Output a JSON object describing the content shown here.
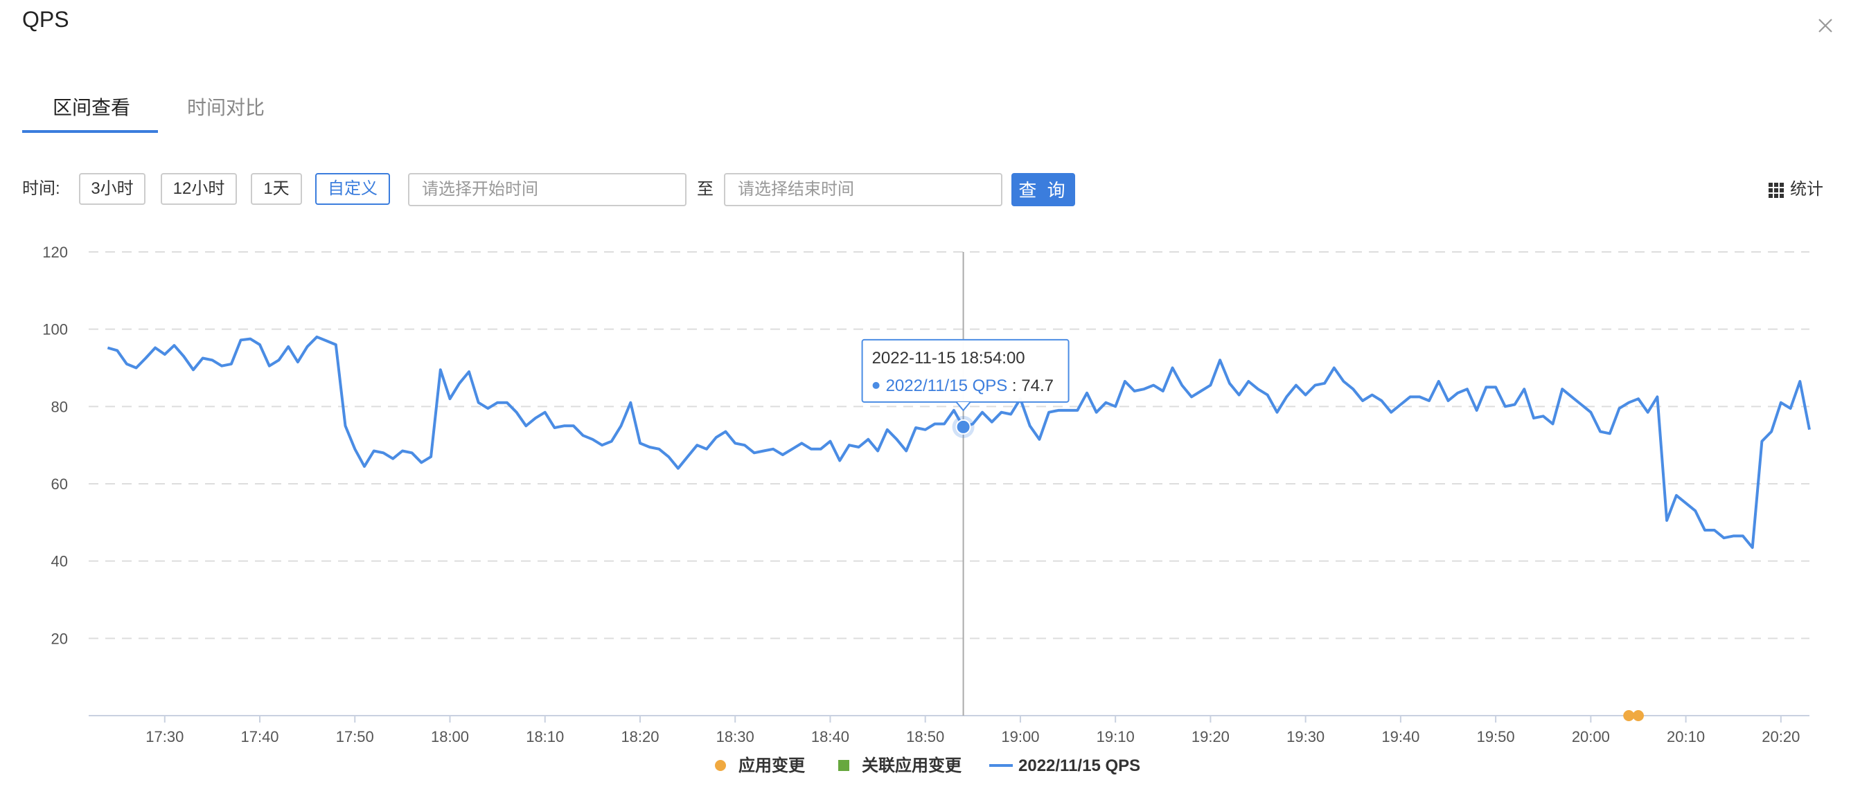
{
  "dialog": {
    "title": "QPS"
  },
  "tabs": [
    {
      "label": "区间查看",
      "active": true
    },
    {
      "label": "时间对比",
      "active": false
    }
  ],
  "toolbar": {
    "time_label": "时间:",
    "range_buttons": [
      "3小时",
      "12小时",
      "1天",
      "自定义"
    ],
    "selected_range": "自定义",
    "start_placeholder": "请选择开始时间",
    "to_label": "至",
    "end_placeholder": "请选择结束时间",
    "query_label": "查 询",
    "stats_label": "统计",
    "stats_icon": "grid-icon"
  },
  "colors": {
    "accent": "#3b7ddd",
    "line": "#4a8ce4",
    "app_change": "#f0a940",
    "related_change": "#67a83e"
  },
  "chart_data": {
    "type": "line",
    "title": "",
    "xlabel": "",
    "ylabel": "",
    "ylim": [
      0,
      120
    ],
    "yticks": [
      20,
      40,
      60,
      80,
      100,
      120
    ],
    "xlim": [
      "17:22",
      "20:23"
    ],
    "xticks": [
      "17:30",
      "17:40",
      "17:50",
      "18:00",
      "18:10",
      "18:20",
      "18:30",
      "18:40",
      "18:50",
      "19:00",
      "19:10",
      "19:20",
      "19:30",
      "19:40",
      "19:50",
      "20:00",
      "20:10",
      "20:20"
    ],
    "grid": true,
    "legend": {
      "placement": "bottom",
      "items": [
        {
          "name": "应用变更",
          "marker": "circle"
        },
        {
          "name": "关联应用变更",
          "marker": "square"
        },
        {
          "name": "2022/11/15 QPS",
          "marker": "line"
        }
      ]
    },
    "series": [
      {
        "name": "2022/11/15 QPS",
        "values": [
          [
            "17:24",
            95.2
          ],
          [
            "17:25",
            94.5
          ],
          [
            "17:26",
            91.0
          ],
          [
            "17:27",
            90.0
          ],
          [
            "17:28",
            92.5
          ],
          [
            "17:29",
            95.2
          ],
          [
            "17:30",
            93.5
          ],
          [
            "17:31",
            95.8
          ],
          [
            "17:32",
            93.0
          ],
          [
            "17:33",
            89.5
          ],
          [
            "17:34",
            92.5
          ],
          [
            "17:35",
            92.0
          ],
          [
            "17:36",
            90.5
          ],
          [
            "17:37",
            91.0
          ],
          [
            "17:38",
            97.2
          ],
          [
            "17:39",
            97.5
          ],
          [
            "17:40",
            96.0
          ],
          [
            "17:41",
            90.5
          ],
          [
            "17:42",
            92.0
          ],
          [
            "17:43",
            95.5
          ],
          [
            "17:44",
            91.5
          ],
          [
            "17:45",
            95.5
          ],
          [
            "17:46",
            98.0
          ],
          [
            "17:47",
            97.0
          ],
          [
            "17:48",
            96.0
          ],
          [
            "17:49",
            75.0
          ],
          [
            "17:50",
            69.0
          ],
          [
            "17:51",
            64.5
          ],
          [
            "17:52",
            68.5
          ],
          [
            "17:53",
            68.0
          ],
          [
            "17:54",
            66.5
          ],
          [
            "17:55",
            68.5
          ],
          [
            "17:56",
            68.0
          ],
          [
            "17:57",
            65.5
          ],
          [
            "17:58",
            67.0
          ],
          [
            "17:59",
            89.5
          ],
          [
            "18:00",
            82.0
          ],
          [
            "18:01",
            86.0
          ],
          [
            "18:02",
            89.0
          ],
          [
            "18:03",
            81.0
          ],
          [
            "18:04",
            79.5
          ],
          [
            "18:05",
            81.0
          ],
          [
            "18:06",
            81.0
          ],
          [
            "18:07",
            78.5
          ],
          [
            "18:08",
            75.0
          ],
          [
            "18:09",
            77.0
          ],
          [
            "18:10",
            78.5
          ],
          [
            "18:11",
            74.5
          ],
          [
            "18:12",
            75.0
          ],
          [
            "18:13",
            75.0
          ],
          [
            "18:14",
            72.5
          ],
          [
            "18:15",
            71.5
          ],
          [
            "18:16",
            70.0
          ],
          [
            "18:17",
            71.0
          ],
          [
            "18:18",
            75.0
          ],
          [
            "18:19",
            81.0
          ],
          [
            "18:20",
            70.5
          ],
          [
            "18:21",
            69.5
          ],
          [
            "18:22",
            69.0
          ],
          [
            "18:23",
            67.0
          ],
          [
            "18:24",
            64.0
          ],
          [
            "18:25",
            67.0
          ],
          [
            "18:26",
            70.0
          ],
          [
            "18:27",
            69.0
          ],
          [
            "18:28",
            72.0
          ],
          [
            "18:29",
            73.5
          ],
          [
            "18:30",
            70.5
          ],
          [
            "18:31",
            70.0
          ],
          [
            "18:32",
            68.0
          ],
          [
            "18:33",
            68.5
          ],
          [
            "18:34",
            69.0
          ],
          [
            "18:35",
            67.5
          ],
          [
            "18:36",
            69.0
          ],
          [
            "18:37",
            70.5
          ],
          [
            "18:38",
            69.0
          ],
          [
            "18:39",
            69.0
          ],
          [
            "18:40",
            71.0
          ],
          [
            "18:41",
            66.0
          ],
          [
            "18:42",
            70.0
          ],
          [
            "18:43",
            69.5
          ],
          [
            "18:44",
            71.5
          ],
          [
            "18:45",
            68.5
          ],
          [
            "18:46",
            74.0
          ],
          [
            "18:47",
            71.5
          ],
          [
            "18:48",
            68.5
          ],
          [
            "18:49",
            74.5
          ],
          [
            "18:50",
            74.0
          ],
          [
            "18:51",
            75.5
          ],
          [
            "18:52",
            75.5
          ],
          [
            "18:53",
            79.0
          ],
          [
            "18:54",
            74.7
          ],
          [
            "18:55",
            75.5
          ],
          [
            "18:56",
            78.5
          ],
          [
            "18:57",
            76.0
          ],
          [
            "18:58",
            78.5
          ],
          [
            "18:59",
            78.0
          ],
          [
            "19:00",
            82.0
          ],
          [
            "19:01",
            75.0
          ],
          [
            "19:02",
            71.5
          ],
          [
            "19:03",
            78.5
          ],
          [
            "19:04",
            79.0
          ],
          [
            "19:05",
            79.0
          ],
          [
            "19:06",
            79.0
          ],
          [
            "19:07",
            83.5
          ],
          [
            "19:08",
            78.5
          ],
          [
            "19:09",
            81.0
          ],
          [
            "19:10",
            80.0
          ],
          [
            "19:11",
            86.5
          ],
          [
            "19:12",
            84.0
          ],
          [
            "19:13",
            84.5
          ],
          [
            "19:14",
            85.5
          ],
          [
            "19:15",
            84.0
          ],
          [
            "19:16",
            90.0
          ],
          [
            "19:17",
            85.5
          ],
          [
            "19:18",
            82.5
          ],
          [
            "19:19",
            84.0
          ],
          [
            "19:20",
            85.5
          ],
          [
            "19:21",
            92.0
          ],
          [
            "19:22",
            86.0
          ],
          [
            "19:23",
            83.0
          ],
          [
            "19:24",
            86.5
          ],
          [
            "19:25",
            84.5
          ],
          [
            "19:26",
            83.0
          ],
          [
            "19:27",
            78.5
          ],
          [
            "19:28",
            82.5
          ],
          [
            "19:29",
            85.5
          ],
          [
            "19:30",
            83.0
          ],
          [
            "19:31",
            85.5
          ],
          [
            "19:32",
            86.0
          ],
          [
            "19:33",
            90.0
          ],
          [
            "19:34",
            86.5
          ],
          [
            "19:35",
            84.5
          ],
          [
            "19:36",
            81.5
          ],
          [
            "19:37",
            83.0
          ],
          [
            "19:38",
            81.5
          ],
          [
            "19:39",
            78.5
          ],
          [
            "19:40",
            80.5
          ],
          [
            "19:41",
            82.5
          ],
          [
            "19:42",
            82.5
          ],
          [
            "19:43",
            81.5
          ],
          [
            "19:44",
            86.5
          ],
          [
            "19:45",
            81.5
          ],
          [
            "19:46",
            83.5
          ],
          [
            "19:47",
            84.5
          ],
          [
            "19:48",
            79.0
          ],
          [
            "19:49",
            85.0
          ],
          [
            "19:50",
            85.0
          ],
          [
            "19:51",
            80.0
          ],
          [
            "19:52",
            80.5
          ],
          [
            "19:53",
            84.5
          ],
          [
            "19:54",
            77.0
          ],
          [
            "19:55",
            77.5
          ],
          [
            "19:56",
            75.5
          ],
          [
            "19:57",
            84.5
          ],
          [
            "19:58",
            82.5
          ],
          [
            "19:59",
            80.5
          ],
          [
            "20:00",
            78.5
          ],
          [
            "20:01",
            73.5
          ],
          [
            "20:02",
            73.0
          ],
          [
            "20:03",
            79.5
          ],
          [
            "20:04",
            81.0
          ],
          [
            "20:05",
            82.0
          ],
          [
            "20:06",
            78.5
          ],
          [
            "20:07",
            82.5
          ],
          [
            "20:08",
            50.5
          ],
          [
            "20:09",
            57.0
          ],
          [
            "20:10",
            55.0
          ],
          [
            "20:11",
            53.0
          ],
          [
            "20:12",
            48.0
          ],
          [
            "20:13",
            48.0
          ],
          [
            "20:14",
            46.0
          ],
          [
            "20:15",
            46.5
          ],
          [
            "20:16",
            46.5
          ],
          [
            "20:17",
            43.5
          ],
          [
            "20:18",
            71.0
          ],
          [
            "20:19",
            73.5
          ],
          [
            "20:20",
            81.0
          ],
          [
            "20:21",
            79.5
          ],
          [
            "20:22",
            86.5
          ],
          [
            "20:23",
            74.0
          ]
        ]
      }
    ],
    "events": [
      {
        "series": "应用变更",
        "times": [
          "20:04",
          "20:05"
        ],
        "y": 0
      }
    ],
    "tooltip": {
      "time": "18:54",
      "title": "2022-11-15 18:54:00",
      "series_label": "2022/11/15 QPS",
      "separator": " : ",
      "value": "74.7"
    }
  }
}
